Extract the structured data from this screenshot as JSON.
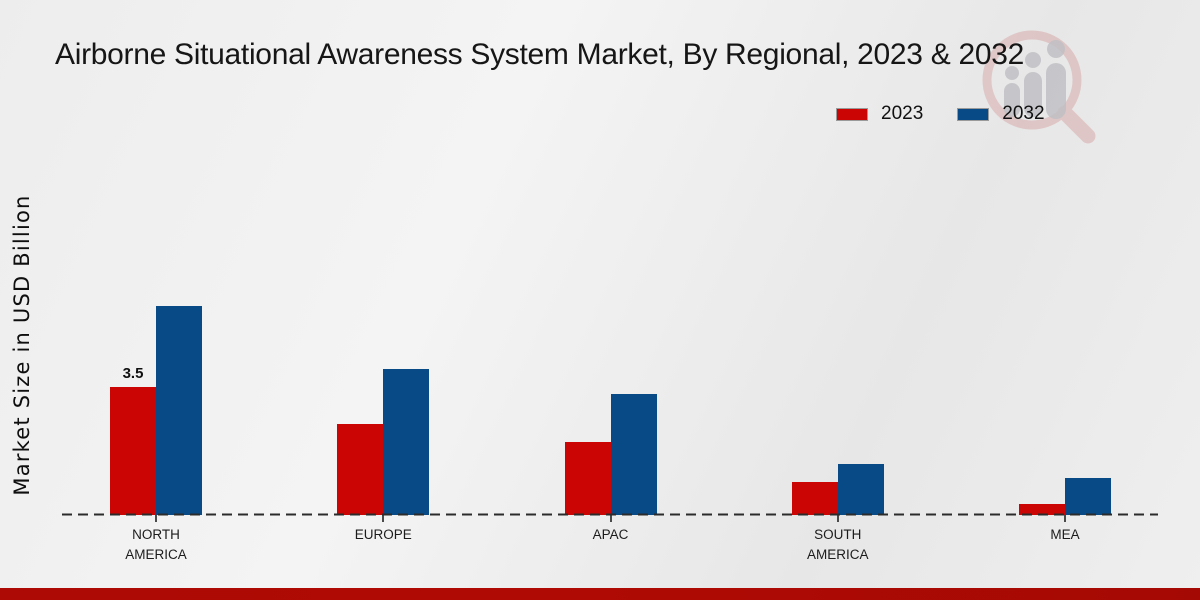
{
  "title": "Airborne Situational Awareness System Market, By Regional, 2023 & 2032",
  "y_axis_label": "Market Size in USD Billion",
  "colors": {
    "series_2023": "#cb0404",
    "series_2032": "#074a85",
    "footer_band": "#b00a04",
    "baseline": "#2b2b2b",
    "background": "#eeeeee"
  },
  "legend": {
    "position": "top-right",
    "items": [
      {
        "label": "2023",
        "color": "#cb0404"
      },
      {
        "label": "2032",
        "color": "#074a85"
      }
    ]
  },
  "watermark": {
    "name": "mrfr-magnifier-logo",
    "ring_color": "#d8abab",
    "figure_color": "#bfbfc4"
  },
  "chart_data": {
    "type": "bar",
    "title": "Airborne Situational Awareness System Market, By Regional, 2023 & 2032",
    "categories": [
      "NORTH AMERICA",
      "EUROPE",
      "APAC",
      "SOUTH AMERICA",
      "MEA"
    ],
    "series": [
      {
        "name": "2023",
        "color": "#cb0404",
        "values": [
          3.5,
          2.5,
          2.0,
          0.9,
          0.3
        ]
      },
      {
        "name": "2032",
        "color": "#074a85",
        "values": [
          5.7,
          4.0,
          3.3,
          1.4,
          1.0
        ]
      }
    ],
    "annotations": [
      {
        "series": "2023",
        "category": "NORTH AMERICA",
        "text": "3.5"
      }
    ],
    "xlabel": "",
    "ylabel": "Market Size in USD Billion",
    "ylim": [
      0,
      6.2
    ],
    "grid": false,
    "y_axis_ticks_visible": false,
    "baseline_style": "dashed",
    "legend_position": "top-right"
  }
}
